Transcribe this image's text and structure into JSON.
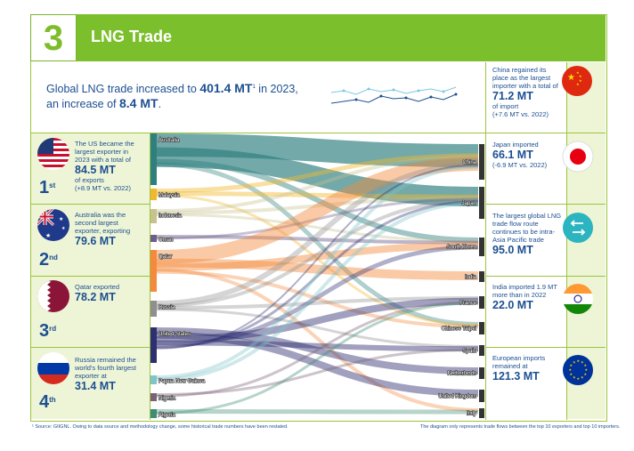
{
  "header": {
    "number": "3",
    "title": "LNG Trade"
  },
  "summary": {
    "line1_pre": "Global LNG trade increased to ",
    "line1_value": "401.4 MT",
    "line1_sup": "1",
    "line1_post": " in 2023,",
    "line2_pre": "an increase of ",
    "line2_value": "8.4 MT",
    "line2_post": "."
  },
  "exporters_cards": [
    {
      "rank": "1",
      "suffix": "st",
      "text1": "The US became the largest exporter in 2023 with a total of",
      "value": "84.5 MT",
      "text2": "of exports",
      "text3": "(+8.9 MT vs. 2022)"
    },
    {
      "rank": "2",
      "suffix": "nd",
      "text1": "Australia was the second largest exporter, exporting",
      "value": "79.6 MT",
      "text2": "",
      "text3": ""
    },
    {
      "rank": "3",
      "suffix": "rd",
      "text1": "Qatar exported",
      "value": "78.2 MT",
      "text2": "",
      "text3": ""
    },
    {
      "rank": "4",
      "suffix": "th",
      "text1": "Russia remained the world's fourth largest exporter at",
      "value": "31.4 MT",
      "text2": "",
      "text3": ""
    }
  ],
  "importer_cards": [
    {
      "text1": "China regained its place as  the largest importer with a total of",
      "value": "71.2 MT",
      "text2": "of import",
      "text3": "(+7.6 MT vs. 2022)"
    },
    {
      "text1": "Japan imported",
      "value": "66.1 MT",
      "text2": "",
      "text3": "(-6.9 MT vs. 2022)"
    },
    {
      "text1": "The largest global LNG trade flow route continues to be intra-Asia Pacific trade",
      "value": "95.0 MT",
      "text2": "",
      "text3": ""
    },
    {
      "text1": "India imported 1.9 MT more than in 2022",
      "value": "22.0 MT",
      "text2": "",
      "text3": ""
    },
    {
      "text1": "European imports remained at",
      "value": "121.3 MT",
      "text2": "",
      "text3": ""
    }
  ],
  "sankey": {
    "exporters": [
      "Australia",
      "Malaysia",
      "Indonesia",
      "Oman",
      "Qatar",
      "Russia",
      "United States",
      "Papua New Guinea",
      "Nigeria",
      "Algeria"
    ],
    "importers": [
      "China",
      "Japan",
      "South Korea",
      "India",
      "France",
      "Chinese Taipei",
      "Spain",
      "Netherlands",
      "United Kingdom",
      "Italy"
    ]
  },
  "footnotes": {
    "left": "¹ Source: GIIGNL. Owing to data source and methodology change, some historical trade numbers have been restated.",
    "right": "The diagram only represents trade flows between the top 10 exporters and top 10 importers."
  },
  "colors": {
    "green": "#7cbf2c",
    "navy": "#1d4f91"
  }
}
